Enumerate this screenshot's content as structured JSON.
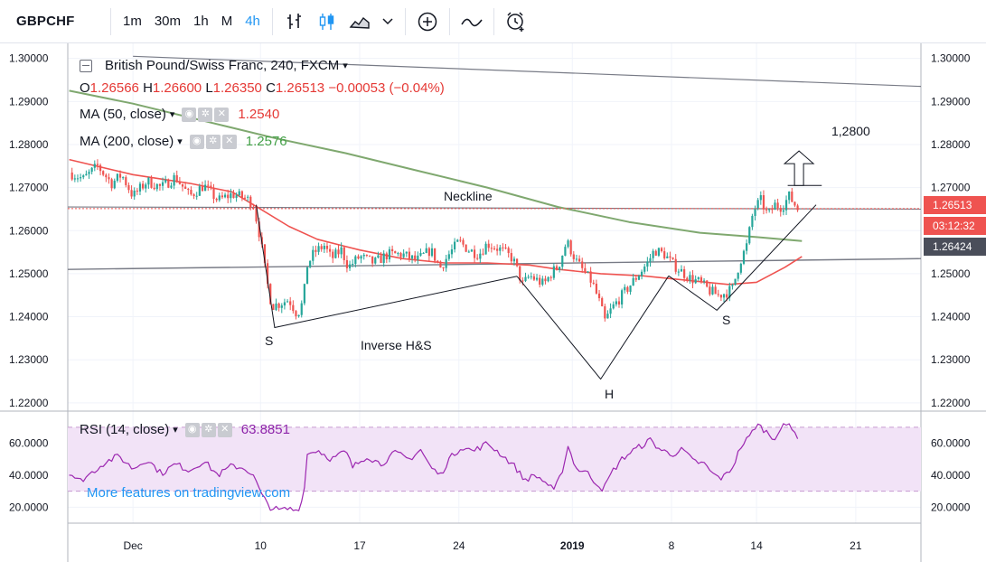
{
  "toolbar": {
    "symbol": "GBPCHF",
    "intervals": [
      "1m",
      "30m",
      "1h",
      "M",
      "4h"
    ],
    "active_interval": "4h",
    "icons": [
      "bar-style-icon",
      "candle-style-icon",
      "area-style-icon",
      "chevron-down-icon",
      "add-indicator-icon",
      "compare-icon",
      "alert-clock-icon"
    ]
  },
  "legend": {
    "title": "British Pound/Swiss Franc, 240, FXCM",
    "ohlc": {
      "o_label": "O",
      "o": "1.26566",
      "h_label": "H",
      "h": "1.26600",
      "l_label": "L",
      "l": "1.26350",
      "c_label": "C",
      "c": "1.26513",
      "change": "−0.00053 (−0.04%)"
    },
    "ma50_label": "MA (50, close)",
    "ma50_value": "1.2540",
    "ma200_label": "MA (200, close)",
    "ma200_value": "1.2576",
    "rsi_label": "RSI (14, close)",
    "rsi_value": "63.8851"
  },
  "badges": {
    "last_price": "1.26513",
    "countdown": "03:12:32",
    "crosshair": "1.26424"
  },
  "annotations": {
    "neckline": "Neckline",
    "target": "1,2800",
    "pattern": "Inverse H&S",
    "left_shoulder": "S",
    "head": "H",
    "right_shoulder": "S"
  },
  "watermark": "More features on tradingview.com",
  "colors": {
    "up": "#26a69a",
    "down": "#ef5350",
    "ma50": "#ef5350",
    "ma200": "#7fa86f",
    "rsi": "#9c27b0",
    "rsi_band": "#f2e3f7",
    "accent": "#2196f3"
  },
  "chart_data": {
    "type": "candlestick",
    "title": "British Pound/Swiss Franc, 240, FXCM",
    "price_axis": {
      "ticks": [
        1.3,
        1.29,
        1.28,
        1.27,
        1.26,
        1.25,
        1.24,
        1.23,
        1.22
      ],
      "ylim": [
        1.2185,
        1.3035
      ]
    },
    "rsi_axis": {
      "ticks": [
        60,
        40,
        20
      ],
      "ylim": [
        10,
        79
      ],
      "band": [
        30,
        70
      ]
    },
    "date_ticks": [
      {
        "label": "Dec",
        "day": 0,
        "bold": false
      },
      {
        "label": "10",
        "day": 9,
        "bold": false
      },
      {
        "label": "17",
        "day": 16,
        "bold": false
      },
      {
        "label": "24",
        "day": 23,
        "bold": false
      },
      {
        "label": "2019",
        "day": 31,
        "bold": true
      },
      {
        "label": "8",
        "day": 38,
        "bold": false
      },
      {
        "label": "14",
        "day": 44,
        "bold": false
      },
      {
        "label": "21",
        "day": 51,
        "bold": false
      }
    ],
    "xlim_days": [
      -4.6,
      55.6
    ],
    "price_path": [
      [
        -4.5,
        1.2735
      ],
      [
        -3.5,
        1.272
      ],
      [
        -2.5,
        1.275
      ],
      [
        -1.5,
        1.271
      ],
      [
        -0.8,
        1.273
      ],
      [
        0.0,
        1.268
      ],
      [
        1.0,
        1.2715
      ],
      [
        2.0,
        1.27
      ],
      [
        3.0,
        1.2725
      ],
      [
        4.0,
        1.268
      ],
      [
        5.0,
        1.2705
      ],
      [
        6.0,
        1.267
      ],
      [
        7.0,
        1.2685
      ],
      [
        8.0,
        1.2675
      ],
      [
        8.5,
        1.266
      ],
      [
        9.0,
        1.258
      ],
      [
        9.4,
        1.249
      ],
      [
        9.8,
        1.2425
      ],
      [
        10.3,
        1.243
      ],
      [
        11.0,
        1.244
      ],
      [
        11.6,
        1.2405
      ],
      [
        12.0,
        1.2435
      ],
      [
        12.3,
        1.252
      ],
      [
        12.8,
        1.255
      ],
      [
        13.5,
        1.2565
      ],
      [
        14.0,
        1.2535
      ],
      [
        14.7,
        1.2555
      ],
      [
        15.2,
        1.2515
      ],
      [
        16.0,
        1.254
      ],
      [
        17.0,
        1.2525
      ],
      [
        18.0,
        1.2545
      ],
      [
        19.0,
        1.2545
      ],
      [
        20.0,
        1.253
      ],
      [
        21.0,
        1.2555
      ],
      [
        21.7,
        1.2515
      ],
      [
        22.3,
        1.2545
      ],
      [
        23.0,
        1.2575
      ],
      [
        23.7,
        1.2555
      ],
      [
        24.4,
        1.2545
      ],
      [
        25.0,
        1.257
      ],
      [
        26.0,
        1.2555
      ],
      [
        26.8,
        1.2535
      ],
      [
        27.5,
        1.2475
      ],
      [
        28.0,
        1.2495
      ],
      [
        29.0,
        1.2475
      ],
      [
        29.6,
        1.2505
      ],
      [
        30.0,
        1.2515
      ],
      [
        30.6,
        1.2575
      ],
      [
        31.3,
        1.2528
      ],
      [
        31.8,
        1.2505
      ],
      [
        32.4,
        1.248
      ],
      [
        32.9,
        1.2435
      ],
      [
        33.3,
        1.239
      ],
      [
        33.8,
        1.242
      ],
      [
        34.4,
        1.2445
      ],
      [
        35.0,
        1.247
      ],
      [
        35.6,
        1.2495
      ],
      [
        36.3,
        1.2525
      ],
      [
        36.8,
        1.2555
      ],
      [
        37.5,
        1.2545
      ],
      [
        38.0,
        1.2525
      ],
      [
        38.7,
        1.2505
      ],
      [
        39.3,
        1.249
      ],
      [
        40.0,
        1.248
      ],
      [
        40.7,
        1.246
      ],
      [
        41.3,
        1.245
      ],
      [
        41.8,
        1.2455
      ],
      [
        42.3,
        1.2465
      ],
      [
        42.8,
        1.2525
      ],
      [
        43.3,
        1.2565
      ],
      [
        43.8,
        1.265
      ],
      [
        44.3,
        1.267
      ],
      [
        44.8,
        1.2635
      ],
      [
        45.3,
        1.266
      ],
      [
        45.8,
        1.2655
      ],
      [
        46.3,
        1.268
      ],
      [
        46.9,
        1.2651
      ]
    ],
    "candle_spacing_days": 0.2,
    "ma50_path": [
      [
        -4.5,
        1.2765
      ],
      [
        0,
        1.273
      ],
      [
        4,
        1.271
      ],
      [
        7,
        1.269
      ],
      [
        9,
        1.265
      ],
      [
        11,
        1.261
      ],
      [
        13,
        1.258
      ],
      [
        16,
        1.2555
      ],
      [
        19,
        1.2535
      ],
      [
        22,
        1.2525
      ],
      [
        25,
        1.2525
      ],
      [
        28,
        1.252
      ],
      [
        30,
        1.251
      ],
      [
        33,
        1.25
      ],
      [
        36,
        1.2495
      ],
      [
        39,
        1.2485
      ],
      [
        42,
        1.2475
      ],
      [
        44,
        1.248
      ],
      [
        46,
        1.2515
      ],
      [
        47.2,
        1.254
      ]
    ],
    "ma200_path": [
      [
        -4.5,
        1.2925
      ],
      [
        0,
        1.2895
      ],
      [
        5,
        1.2855
      ],
      [
        10,
        1.2815
      ],
      [
        15,
        1.278
      ],
      [
        20,
        1.274
      ],
      [
        25,
        1.27
      ],
      [
        30,
        1.2655
      ],
      [
        35,
        1.262
      ],
      [
        40,
        1.2595
      ],
      [
        44,
        1.2585
      ],
      [
        47.2,
        1.2576
      ]
    ],
    "rsi_path": [
      [
        -4.5,
        42
      ],
      [
        -3.8,
        36
      ],
      [
        -3,
        41
      ],
      [
        -2,
        48
      ],
      [
        -1,
        52
      ],
      [
        0,
        44
      ],
      [
        1,
        50
      ],
      [
        2,
        41
      ],
      [
        3,
        47
      ],
      [
        4,
        43
      ],
      [
        5,
        49
      ],
      [
        6,
        40
      ],
      [
        7,
        46
      ],
      [
        8,
        44
      ],
      [
        8.6,
        38
      ],
      [
        9.1,
        27
      ],
      [
        9.7,
        20
      ],
      [
        10.3,
        18
      ],
      [
        11,
        19
      ],
      [
        11.6,
        18
      ],
      [
        12,
        25
      ],
      [
        12.3,
        53
      ],
      [
        13,
        56
      ],
      [
        14,
        50
      ],
      [
        15,
        55
      ],
      [
        15.5,
        45
      ],
      [
        16.5,
        52
      ],
      [
        17.5,
        47
      ],
      [
        18.5,
        54
      ],
      [
        19.5,
        50
      ],
      [
        20.3,
        56
      ],
      [
        21,
        45
      ],
      [
        21.7,
        40
      ],
      [
        22.3,
        50
      ],
      [
        23.2,
        58
      ],
      [
        24,
        55
      ],
      [
        25,
        60
      ],
      [
        26,
        53
      ],
      [
        27,
        45
      ],
      [
        27.6,
        37
      ],
      [
        28.4,
        40
      ],
      [
        29.2,
        35
      ],
      [
        29.7,
        30
      ],
      [
        30.2,
        40
      ],
      [
        30.7,
        58
      ],
      [
        31.3,
        44
      ],
      [
        32,
        42
      ],
      [
        32.6,
        36
      ],
      [
        33.2,
        31
      ],
      [
        33.8,
        42
      ],
      [
        34.5,
        50
      ],
      [
        35.2,
        55
      ],
      [
        35.8,
        58
      ],
      [
        36.5,
        62
      ],
      [
        37.2,
        56
      ],
      [
        38,
        53
      ],
      [
        38.8,
        56
      ],
      [
        39.5,
        49
      ],
      [
        40.3,
        47
      ],
      [
        41,
        40
      ],
      [
        41.6,
        38
      ],
      [
        42.3,
        45
      ],
      [
        42.9,
        58
      ],
      [
        43.5,
        64
      ],
      [
        44,
        72
      ],
      [
        44.6,
        68
      ],
      [
        45.2,
        63
      ],
      [
        45.8,
        70
      ],
      [
        46.4,
        72
      ],
      [
        46.9,
        64
      ]
    ],
    "drawings": {
      "neckline": [
        [
          -4.6,
          1.2655
        ],
        [
          55.6,
          1.265
        ]
      ],
      "support_line": [
        [
          -4.6,
          1.251
        ],
        [
          55.6,
          1.2535
        ]
      ],
      "downtrend_line": [
        [
          0,
          1.3005
        ],
        [
          55.6,
          1.2935
        ]
      ],
      "left_shoulder_legs": [
        [
          [
            8.7,
            1.266
          ],
          [
            10.0,
            1.2375
          ],
          [
            27.1,
            1.2494
          ]
        ]
      ],
      "head_legs": [
        [
          [
            27.1,
            1.2494
          ],
          [
            33.0,
            1.2255
          ],
          [
            37.8,
            1.2495
          ]
        ]
      ],
      "right_shoulder_legs": [
        [
          [
            37.8,
            1.2495
          ],
          [
            41.2,
            1.2415
          ],
          [
            48.2,
            1.266
          ]
        ]
      ],
      "target_marker": {
        "day": 46.2,
        "to_day": 48.6,
        "price": 1.2705,
        "arrow_top": 1.2785
      }
    }
  }
}
